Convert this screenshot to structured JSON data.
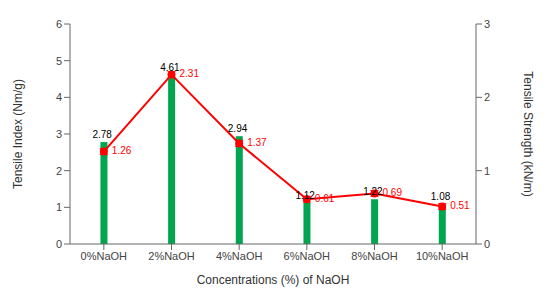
{
  "chart_data": {
    "type": "bar",
    "categories": [
      "0%NaOH",
      "2%NaOH",
      "4%NaOH",
      "6%NaOH",
      "8%NaOH",
      "10%NaOH"
    ],
    "xlabel": "Concentrations (%) of NaOH",
    "ylabel": "Tensile Index (Nm/g)",
    "y2label": "Tensile Strength (kN/m)",
    "ylim": [
      0,
      6
    ],
    "yticks": [
      0,
      1,
      2,
      3,
      4,
      5,
      6
    ],
    "y2lim": [
      0,
      3
    ],
    "y2ticks": [
      0,
      1,
      2,
      3
    ],
    "data_labels": true,
    "series": [
      {
        "type": "bar",
        "color": "#00a550",
        "values": [
          2.78,
          4.61,
          2.94,
          1.12,
          1.22,
          1.08
        ]
      },
      {
        "type": "line",
        "axis": "y2",
        "color": "#ff0000",
        "marker": "circle",
        "values": [
          1.26,
          2.31,
          1.37,
          0.61,
          0.69,
          0.51
        ],
        "yerr": 0.04
      }
    ]
  }
}
